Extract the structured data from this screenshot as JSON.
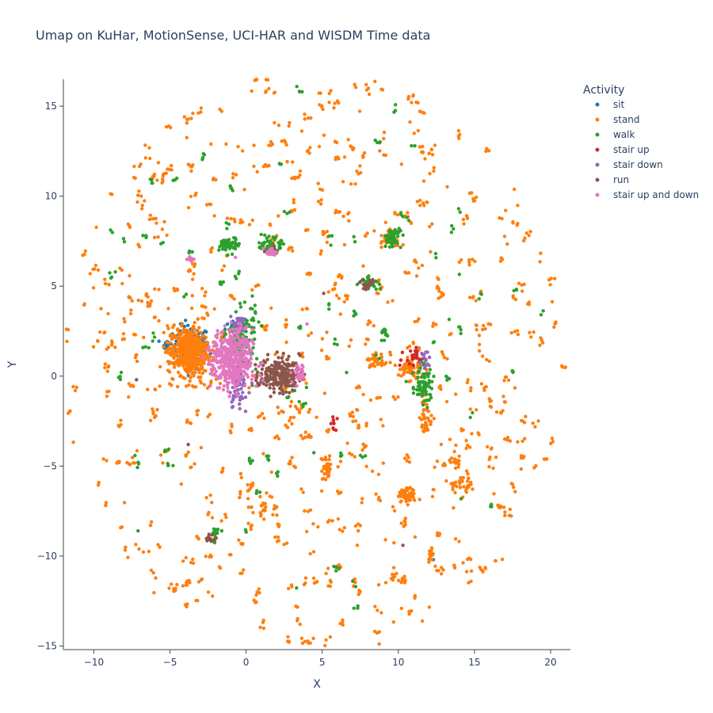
{
  "chart_data": {
    "type": "scatter",
    "title": "Umap on KuHar, MotionSense, UCI-HAR and WISDM   Time data",
    "xlabel": "X",
    "ylabel": "Y",
    "xlim": [
      -12,
      21.3
    ],
    "ylim": [
      -15.2,
      16.5
    ],
    "xticks": [
      -10,
      -5,
      0,
      5,
      10,
      15,
      20
    ],
    "yticks": [
      -15,
      -10,
      -5,
      0,
      5,
      10,
      15
    ],
    "xtick_labels": [
      "−10",
      "−5",
      "0",
      "5",
      "10",
      "15",
      "20"
    ],
    "ytick_labels": [
      "−15",
      "−10",
      "−5",
      "0",
      "5",
      "10",
      "15"
    ],
    "legend_title": "Activity",
    "legend_position": "top-right",
    "series": [
      {
        "name": "sit",
        "color": "#1f77b4",
        "clusters": [
          [
            -3.6,
            1.6,
            1.0,
            1.0,
            140
          ],
          [
            -0.6,
            2.8,
            0.6,
            0.4,
            30
          ],
          [
            -5.2,
            1.8,
            0.25,
            0.2,
            15
          ]
        ],
        "points": [
          [
            12.3,
            -10.2
          ],
          [
            -1.5,
            2.4
          ],
          [
            11.5,
            0.8
          ]
        ]
      },
      {
        "name": "stand",
        "color": "#ff7f0e",
        "clusters": [
          [
            -3.8,
            1.4,
            1.1,
            1.1,
            500
          ],
          [
            10.6,
            -6.6,
            0.45,
            0.3,
            60
          ],
          [
            11.8,
            -2.2,
            0.35,
            1.0,
            40
          ],
          [
            5.3,
            -5.1,
            0.3,
            0.6,
            35
          ],
          [
            14.0,
            -6.0,
            0.6,
            0.4,
            30
          ],
          [
            9.3,
            7.8,
            0.5,
            0.5,
            30
          ],
          [
            10.8,
            0.4,
            0.7,
            0.6,
            60
          ],
          [
            8.6,
            0.8,
            0.6,
            0.4,
            30
          ],
          [
            1.1,
            -7.2,
            0.2,
            0.4,
            15
          ],
          [
            13.8,
            -4.8,
            0.4,
            0.3,
            15
          ]
        ],
        "scatter": {
          "count": 520,
          "cx": 4.5,
          "cy": 0.7,
          "r": 16.5
        },
        "points": []
      },
      {
        "name": "walk",
        "color": "#2ca02c",
        "clusters": [
          [
            -1.1,
            7.3,
            0.5,
            0.35,
            60
          ],
          [
            1.7,
            7.3,
            0.5,
            0.3,
            50
          ],
          [
            -0.3,
            2.0,
            0.8,
            1.5,
            120
          ],
          [
            11.6,
            -0.5,
            0.6,
            0.9,
            70
          ],
          [
            9.6,
            7.7,
            0.5,
            0.5,
            50
          ],
          [
            8.1,
            5.2,
            0.5,
            0.25,
            30
          ],
          [
            9.1,
            2.4,
            0.25,
            0.25,
            15
          ],
          [
            -2.0,
            -8.8,
            0.25,
            0.4,
            15
          ]
        ],
        "scatter": {
          "count": 70,
          "cx": 4.5,
          "cy": 0.7,
          "r": 15.5
        },
        "points": [
          [
            7.0,
            -11.4
          ],
          [
            7.2,
            -11.7
          ],
          [
            -1.6,
            -8.6
          ],
          [
            6.6,
            0.2
          ],
          [
            0.5,
            3.1
          ]
        ]
      },
      {
        "name": "stair up",
        "color": "#d62728",
        "clusters": [
          [
            11.0,
            1.0,
            0.5,
            0.5,
            25
          ],
          [
            5.8,
            -2.6,
            0.2,
            0.4,
            10
          ]
        ],
        "points": [
          [
            10.1,
            0.6
          ],
          [
            10.8,
            1.4
          ]
        ]
      },
      {
        "name": "stair down",
        "color": "#9467bd",
        "clusters": [
          [
            -0.6,
            -0.6,
            0.6,
            1.0,
            60
          ],
          [
            -0.5,
            2.9,
            0.4,
            0.3,
            25
          ],
          [
            11.7,
            0.9,
            0.3,
            0.4,
            15
          ]
        ],
        "points": [
          [
            -3.5,
            6.5
          ],
          [
            -3.7,
            6.6
          ]
        ]
      },
      {
        "name": "run",
        "color": "#8c564b",
        "clusters": [
          [
            2.2,
            0.1,
            1.1,
            0.8,
            220
          ],
          [
            8.0,
            5.1,
            0.4,
            0.3,
            20
          ],
          [
            -2.3,
            -9.0,
            0.3,
            0.2,
            12
          ],
          [
            1.7,
            7.0,
            0.3,
            0.2,
            12
          ]
        ],
        "points": [
          [
            10.3,
            -9.4
          ],
          [
            -7.2,
            -0.2
          ],
          [
            -3.8,
            -3.8
          ],
          [
            5.1,
            4.6
          ]
        ]
      },
      {
        "name": "stair up and down",
        "color": "#e377c2",
        "clusters": [
          [
            -0.9,
            0.9,
            1.1,
            1.4,
            420
          ],
          [
            1.6,
            6.9,
            0.3,
            0.2,
            20
          ],
          [
            3.5,
            0.1,
            0.5,
            0.5,
            25
          ],
          [
            -3.6,
            6.5,
            0.2,
            0.1,
            8
          ]
        ],
        "points": [
          [
            4.0,
            2.9
          ],
          [
            -0.7,
            6.6
          ]
        ]
      }
    ]
  }
}
